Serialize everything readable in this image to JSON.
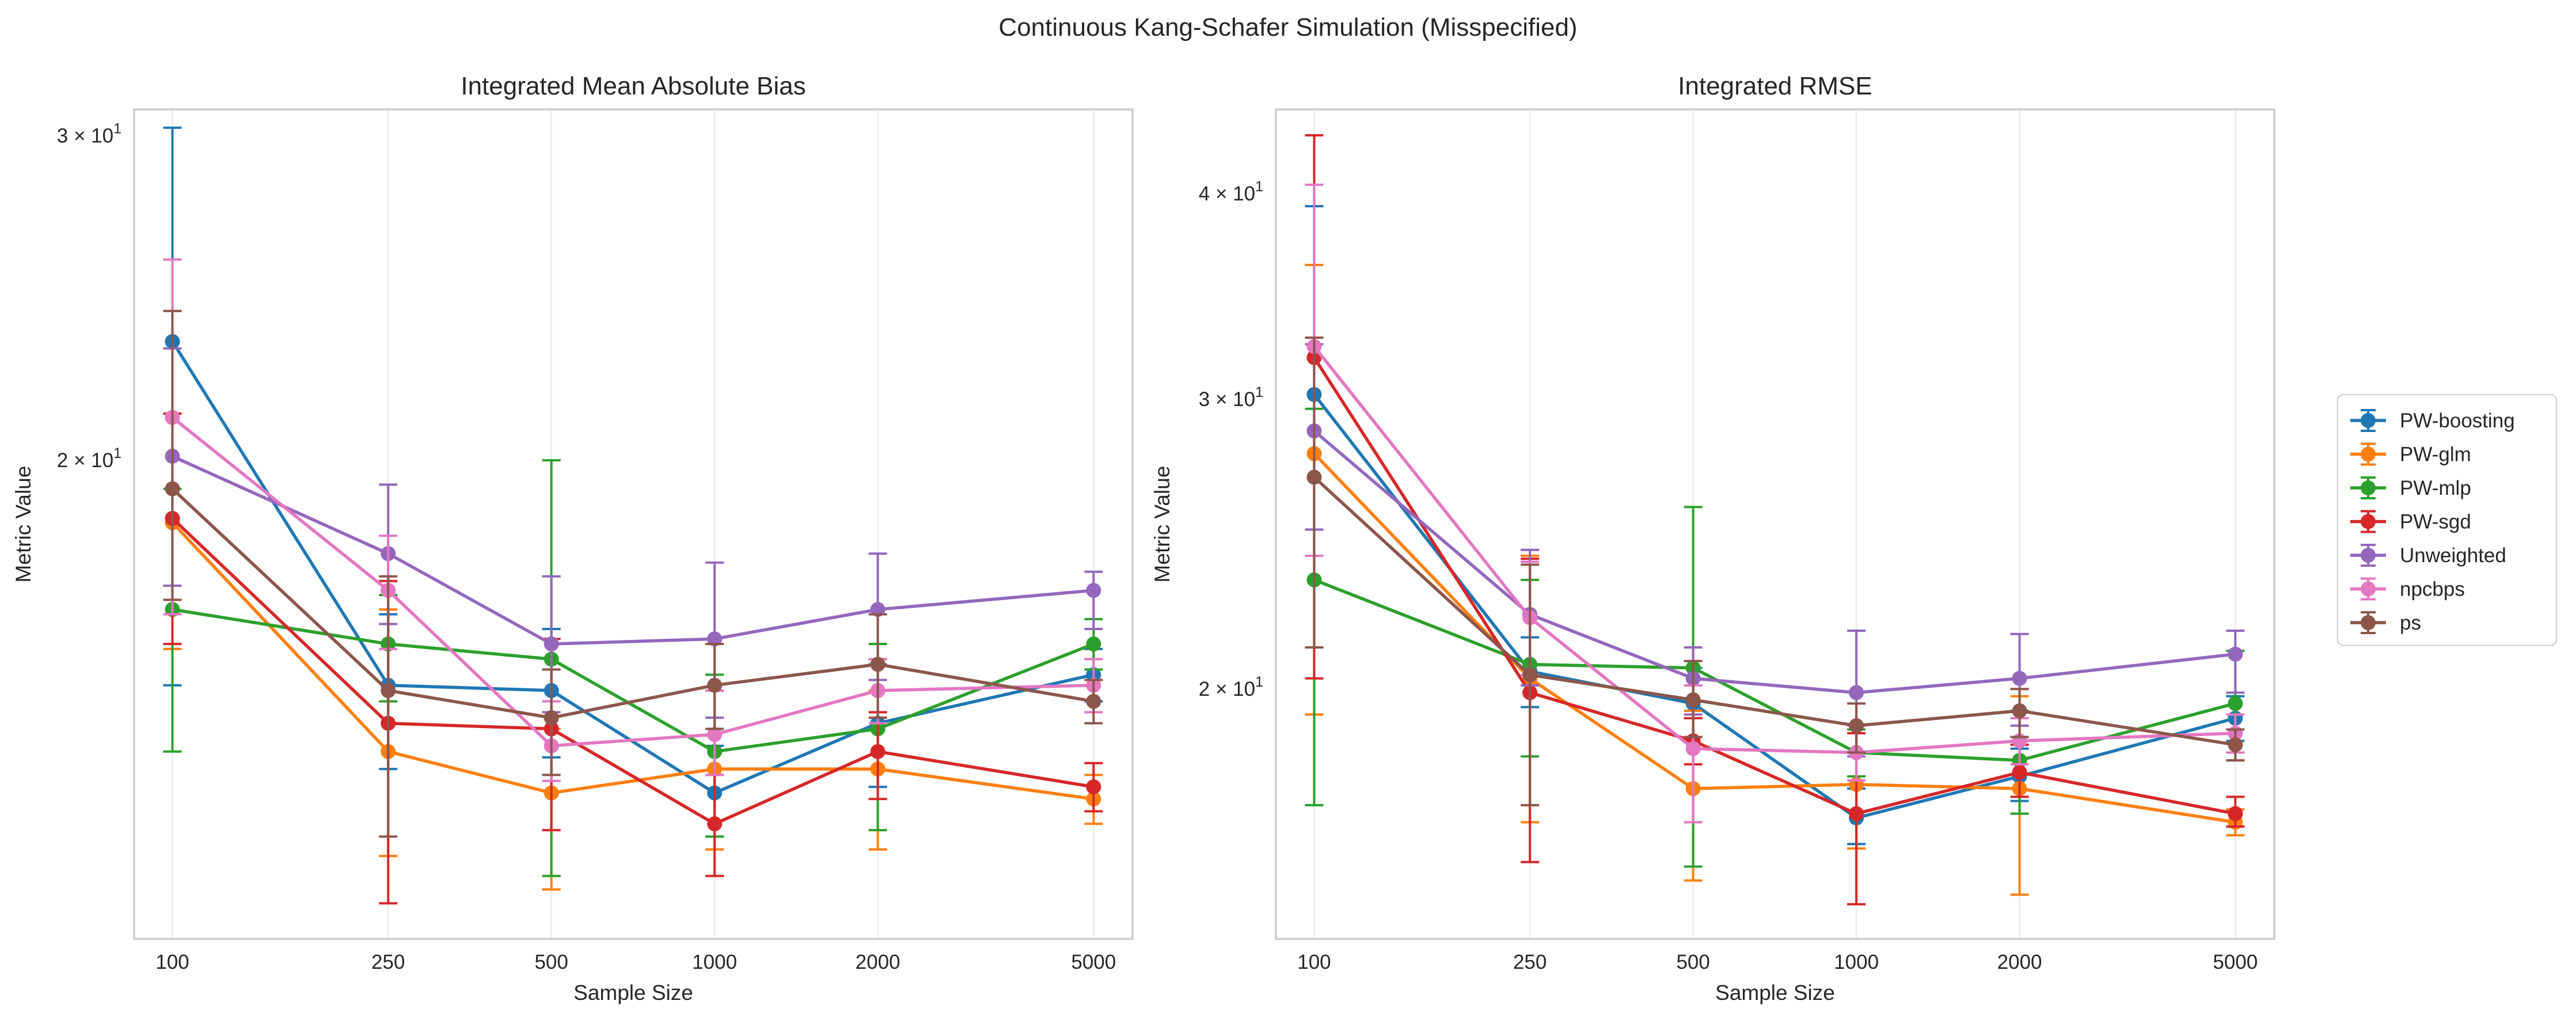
{
  "figure_title": "Continuous Kang-Schafer Simulation (Misspecified)",
  "colors": {
    "PW-boosting": "#1f77b4",
    "PW-glm": "#ff7f0e",
    "PW-mlp": "#2ca02c",
    "PW-sgd": "#d62728",
    "Unweighted": "#9467bd",
    "npcbps": "#e377c2",
    "ps": "#8c564b"
  },
  "legend": {
    "placement": "right, outside plots",
    "entries": [
      "PW-boosting",
      "PW-glm",
      "PW-mlp",
      "PW-sgd",
      "Unweighted",
      "npcbps",
      "ps"
    ]
  },
  "chart_data": [
    {
      "type": "line",
      "title": "Integrated Mean Absolute Bias",
      "xlabel": "Sample Size",
      "ylabel": "Metric Value",
      "xscale": "log",
      "yscale": "log",
      "grid": true,
      "error_bars": true,
      "x": [
        100,
        250,
        500,
        1000,
        2000,
        5000
      ],
      "x_tick_labels": [
        "100",
        "250",
        "500",
        "1000",
        "2000",
        "5000"
      ],
      "xlim": [
        85,
        5900
      ],
      "ylim": [
        11.0,
        31.0
      ],
      "y_ticks": [
        {
          "value": 20,
          "base": "2 × 10",
          "exp": "1"
        },
        {
          "value": 30,
          "base": "3 × 10",
          "exp": "1"
        }
      ],
      "series": [
        {
          "name": "PW-boosting",
          "values": [
            23.2,
            15.1,
            15.0,
            13.2,
            14.4,
            15.3
          ],
          "lower": [
            15.1,
            13.6,
            13.8,
            12.5,
            13.3,
            14.8
          ],
          "upper": [
            30.3,
            16.5,
            16.2,
            14.0,
            15.5,
            15.8
          ]
        },
        {
          "name": "PW-glm",
          "values": [
            18.5,
            13.9,
            13.2,
            13.6,
            13.6,
            13.1
          ],
          "lower": [
            15.8,
            12.2,
            11.7,
            12.3,
            12.3,
            12.7
          ],
          "upper": [
            21.2,
            16.6,
            14.3,
            15.0,
            15.0,
            13.5
          ]
        },
        {
          "name": "PW-mlp",
          "values": [
            16.6,
            15.9,
            15.6,
            13.9,
            14.3,
            15.9
          ],
          "lower": [
            13.9,
            14.8,
            11.9,
            12.5,
            12.6,
            15.4
          ],
          "upper": [
            19.3,
            16.9,
            20.0,
            15.3,
            15.9,
            16.4
          ]
        },
        {
          "name": "PW-sgd",
          "values": [
            18.6,
            14.4,
            14.3,
            12.7,
            13.9,
            13.3
          ],
          "lower": [
            15.9,
            11.5,
            12.6,
            11.9,
            13.1,
            12.9
          ],
          "upper": [
            21.2,
            17.2,
            16.0,
            13.5,
            14.6,
            13.7
          ]
        },
        {
          "name": "Unweighted",
          "values": [
            20.1,
            17.8,
            15.9,
            16.0,
            16.6,
            17.0
          ],
          "lower": [
            17.1,
            16.3,
            14.6,
            14.5,
            15.2,
            16.2
          ],
          "upper": [
            23.0,
            19.4,
            17.3,
            17.6,
            17.8,
            17.4
          ]
        },
        {
          "name": "npcbps",
          "values": [
            21.1,
            17.0,
            14.0,
            14.2,
            15.0,
            15.1
          ],
          "lower": [
            16.5,
            15.8,
            13.4,
            13.5,
            14.4,
            14.6
          ],
          "upper": [
            25.7,
            18.2,
            14.8,
            15.0,
            15.6,
            15.6
          ]
        },
        {
          "name": "ps",
          "values": [
            19.3,
            15.0,
            14.5,
            15.1,
            15.5,
            14.8
          ],
          "lower": [
            16.8,
            12.5,
            13.5,
            14.3,
            14.5,
            14.4
          ],
          "upper": [
            24.1,
            17.3,
            15.4,
            15.9,
            16.5,
            15.2
          ]
        }
      ]
    },
    {
      "type": "line",
      "title": "Integrated RMSE",
      "xlabel": "Sample Size",
      "ylabel": "Metric Value",
      "xscale": "log",
      "yscale": "log",
      "grid": true,
      "error_bars": true,
      "x": [
        100,
        250,
        500,
        1000,
        2000,
        5000
      ],
      "x_tick_labels": [
        "100",
        "250",
        "500",
        "1000",
        "2000",
        "5000"
      ],
      "xlim": [
        85,
        5900
      ],
      "ylim": [
        14.1,
        45.0
      ],
      "y_ticks": [
        {
          "value": 20,
          "base": "2 × 10",
          "exp": "1"
        },
        {
          "value": 30,
          "base": "3 × 10",
          "exp": "1"
        },
        {
          "value": 40,
          "base": "4 × 10",
          "exp": "1"
        }
      ],
      "series": [
        {
          "name": "PW-boosting",
          "values": [
            30.2,
            20.5,
            19.6,
            16.7,
            17.7,
            19.2
          ],
          "lower": [
            21.2,
            19.5,
            18.7,
            16.1,
            17.1,
            18.6
          ],
          "upper": [
            39.3,
            21.5,
            20.6,
            17.4,
            18.4,
            19.8
          ]
        },
        {
          "name": "PW-glm",
          "values": [
            27.8,
            20.3,
            17.4,
            17.5,
            17.4,
            16.6
          ],
          "lower": [
            19.3,
            16.6,
            15.3,
            16.0,
            15.0,
            16.3
          ],
          "upper": [
            36.2,
            24.1,
            19.4,
            19.0,
            19.8,
            16.9
          ]
        },
        {
          "name": "PW-mlp",
          "values": [
            23.3,
            20.7,
            20.6,
            18.3,
            18.1,
            19.6
          ],
          "lower": [
            17.0,
            18.2,
            15.6,
            17.7,
            16.8,
            18.1
          ],
          "upper": [
            29.6,
            23.3,
            25.8,
            18.9,
            19.4,
            21.1
          ]
        },
        {
          "name": "PW-sgd",
          "values": [
            31.8,
            19.9,
            18.6,
            16.8,
            17.8,
            16.8
          ],
          "lower": [
            20.3,
            15.7,
            18.0,
            14.8,
            17.2,
            16.5
          ],
          "upper": [
            43.4,
            24.0,
            19.2,
            18.8,
            18.5,
            17.2
          ]
        },
        {
          "name": "Unweighted",
          "values": [
            28.7,
            22.2,
            20.3,
            19.9,
            20.3,
            21.0
          ],
          "lower": [
            25.0,
            20.1,
            19.3,
            18.2,
            19.0,
            19.9
          ],
          "upper": [
            32.4,
            24.3,
            21.2,
            21.7,
            21.6,
            21.7
          ]
        },
        {
          "name": "npcbps",
          "values": [
            32.3,
            22.1,
            18.4,
            18.3,
            18.6,
            18.8
          ],
          "lower": [
            24.1,
            20.4,
            16.6,
            17.6,
            18.0,
            18.3
          ],
          "upper": [
            40.5,
            23.9,
            20.1,
            19.0,
            19.2,
            19.3
          ]
        },
        {
          "name": "ps",
          "values": [
            26.9,
            20.4,
            19.7,
            19.0,
            19.4,
            18.5
          ],
          "lower": [
            21.2,
            17.0,
            18.7,
            18.3,
            18.7,
            18.1
          ],
          "upper": [
            32.7,
            23.8,
            20.8,
            19.6,
            20.0,
            18.9
          ]
        }
      ]
    }
  ]
}
